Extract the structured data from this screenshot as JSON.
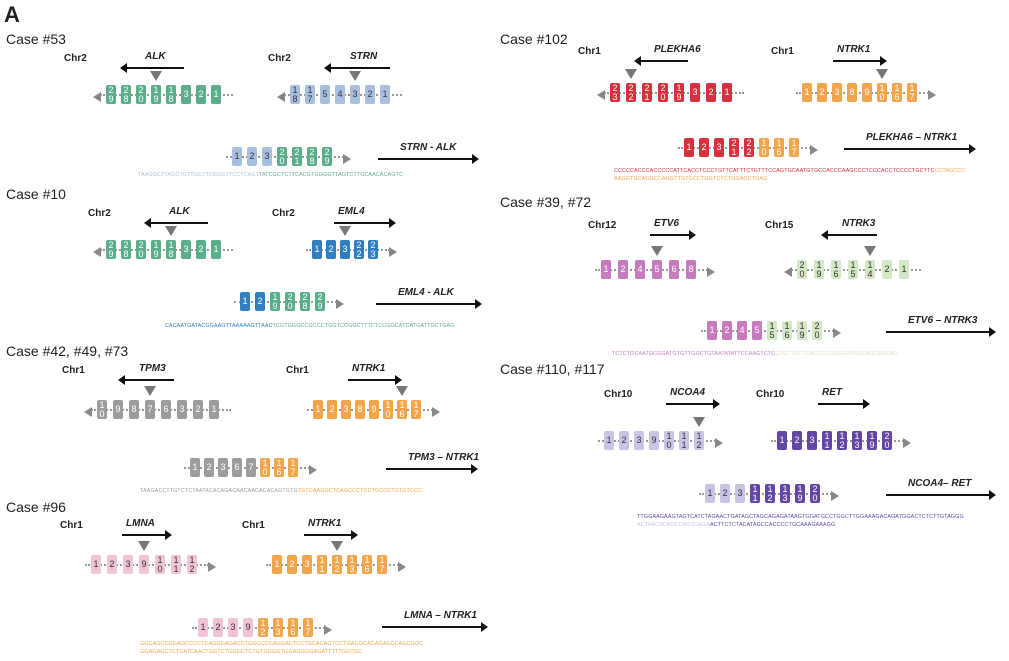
{
  "panel_label": "A",
  "colors": {
    "ALK": "#5aae8a",
    "STRN": "#a8bfe0",
    "EML4": "#2f7fc1",
    "TPM3": "#9d9d9d",
    "NTRK1": "#f2a54a",
    "LMNA": "#f2c2d6",
    "PLEKHA6": "#d9303d",
    "ETV6": "#c77bbf",
    "NTRK3": "#d3e8c5",
    "NCOA4": "#c9c4e3",
    "RET": "#6447a3"
  },
  "cases": {
    "c53": {
      "title": "Case #53",
      "g1": {
        "chr": "Chr2",
        "name": "ALK",
        "exons": [
          "2\n9",
          "2\n8",
          "2\n0",
          "1\n9",
          "1\n8",
          "3",
          "2",
          "1"
        ]
      },
      "g2": {
        "chr": "Chr2",
        "name": "STRN",
        "exons": [
          "1\n8",
          "1\n7",
          "5",
          "4",
          "3",
          "2",
          "1"
        ]
      },
      "fusion": {
        "name": "STRN - ALK",
        "exons": [
          "1",
          "2",
          "3",
          "2\n0",
          "2\n1",
          "2\n8",
          "2\n9"
        ]
      },
      "seq": [
        "TAAGGCTTAGCTGTTGCTTCGGCTTCCTCAGTTATCGCTCTTCACGTGGGGTTAGTCTTGCAACACAGTC"
      ]
    },
    "c10": {
      "title": "Case #10",
      "g1": {
        "chr": "Chr2",
        "name": "ALK",
        "exons": [
          "2\n9",
          "2\n8",
          "2\n0",
          "1\n9",
          "1\n8",
          "3",
          "2",
          "1"
        ]
      },
      "g2": {
        "chr": "Chr2",
        "name": "EML4",
        "exons": [
          "1",
          "2",
          "3",
          "2\n2",
          "2\n3"
        ]
      },
      "fusion": {
        "name": "EML4 - ALK",
        "exons": [
          "1",
          "2",
          "1\n9",
          "2\n0",
          "2\n8",
          "2\n9"
        ]
      },
      "seq": [
        "CACAATGATACGGAAGTTAAAAAGTTAACTCGTGGGCCGCCCTGGTCCGGCTTTCTCCGGCATCATGATTGCTGAG"
      ]
    },
    "c42": {
      "title": "Case #42, #49, #73",
      "g1": {
        "chr": "Chr1",
        "name": "TPM3",
        "exons": [
          "1\n0",
          "9",
          "8",
          "7",
          "6",
          "3",
          "2",
          "1"
        ]
      },
      "g2": {
        "chr": "Chr1",
        "name": "NTRK1",
        "exons": [
          "1",
          "2",
          "3",
          "8",
          "9",
          "1\n0",
          "1\n6",
          "1\n7"
        ]
      },
      "fusion": {
        "name": "TPM3 – NTRK1",
        "exons": [
          "1",
          "2",
          "3",
          "6",
          "7",
          "1\n0",
          "1\n6",
          "1\n7"
        ]
      },
      "seq": [
        "TAAGACCTTGTCTCTAATACACAGACAACAACACACAGTGTGTGTCAAGGCTCAGCCCTCCTGCCCTGTGTCCC"
      ]
    },
    "c96": {
      "title": "Case #96",
      "g1": {
        "chr": "Chr1",
        "name": "LMNA",
        "exons": [
          "1",
          "2",
          "3",
          "9",
          "1\n0",
          "1\n1",
          "1\n2"
        ]
      },
      "g2": {
        "chr": "Chr1",
        "name": "NTRK1",
        "exons": [
          "1",
          "2",
          "3",
          "1\n1",
          "1\n2",
          "1\n3",
          "1\n6",
          "1\n7"
        ]
      },
      "fusion": {
        "name": "LMNA – NTRK1",
        "exons": [
          "1",
          "2",
          "3",
          "9",
          "1\n2",
          "1\n3",
          "1\n6",
          "1\n7"
        ]
      },
      "seq": [
        "GGCAGCCGGAGCCCCTCAGGGAGACCTGGGCCCAGGACTCCTGCACAGTCCTGAGGCACAGAGCCAGCGGC",
        "GGAGAGCTCTCATCAACTGGTCTGGGCTCTGTGGGGTGGAGGGGAGATTTTTGGTGC"
      ]
    },
    "c102": {
      "title": "Case #102",
      "g1": {
        "chr": "Chr1",
        "name": "PLEKHA6",
        "exons": [
          "2\n3",
          "2\n2",
          "2\n1",
          "2\n0",
          "1\n9",
          "3",
          "2",
          "1"
        ]
      },
      "g2": {
        "chr": "Chr1",
        "name": "NTRK1",
        "exons": [
          "1",
          "2",
          "3",
          "8",
          "9",
          "1\n0",
          "1\n6",
          "1\n7"
        ]
      },
      "fusion": {
        "name": "PLEKHA6 – NTRK1",
        "exons": [
          "1",
          "2",
          "3",
          "2\n1",
          "2\n2",
          "1\n0",
          "1\n6",
          "1\n7"
        ]
      },
      "seq": [
        "CCCCCACCCACCCCCATTCACCTCCCTGTTCATTTCTGTTTCCAGTGCAATGTGCCACCCAAGCCCTCCCACCTCCCCTGCTTCCCTAGCCC",
        "AAGGTGCAGGCCAGGTTGTGCCTGGTCTCTGGAGCTGAG"
      ]
    },
    "c39": {
      "title": "Case #39, #72",
      "g1": {
        "chr": "Chr12",
        "name": "ETV6",
        "exons": [
          "1",
          "2",
          "4",
          "5",
          "6",
          "8"
        ]
      },
      "g2": {
        "chr": "Chr15",
        "name": "NTRK3",
        "exons": [
          "2\n0",
          "1\n9",
          "1\n6",
          "1\n5",
          "1\n4",
          "2",
          "1"
        ]
      },
      "fusion": {
        "name": "ETV6 – NTRK3",
        "exons": [
          "1",
          "2",
          "4",
          "5",
          "1\n5",
          "1\n6",
          "1\n9",
          "2\n0"
        ]
      },
      "seq": [
        "TCTCTGCAATGCGGATGTGTTGGCTGTAATATATTCCAAGTCTCGTGTTGTTGAGGTGGGGGATGGCAGCAGCAG"
      ]
    },
    "c110": {
      "title": "Case #110, #117",
      "g1": {
        "chr": "Chr10",
        "name": "NCOA4",
        "exons": [
          "1",
          "2",
          "3",
          "9",
          "1\n0",
          "1\n1",
          "1\n2"
        ]
      },
      "g2": {
        "chr": "Chr10",
        "name": "RET",
        "exons": [
          "1",
          "2",
          "3",
          "1\n1",
          "1\n2",
          "1\n3",
          "1\n9",
          "2\n0"
        ]
      },
      "fusion": {
        "name": "NCOA4– RET",
        "exons": [
          "1",
          "2",
          "3",
          "1\n1",
          "1\n2",
          "1\n3",
          "1\n9",
          "2\n0"
        ]
      },
      "seq": [
        "TTGGAAGAAGTAGTCATCTAGAACTGATAGCTAGCAGAGATAAGTGGATGCCTGGCTTGGAAAGACAGATGGACTCTCTTGTAGGG",
        "ACTAACACAGCCAGTGAGAACTTCTCTACATAGCCACCCCTGCAAAGAAAGG"
      ]
    }
  }
}
